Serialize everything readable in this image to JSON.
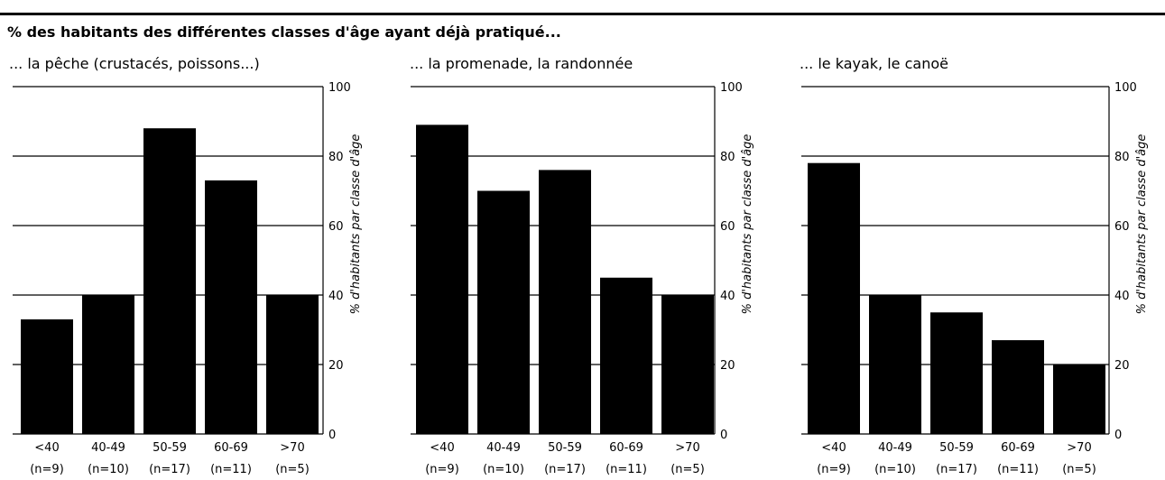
{
  "title": "% des habitants des différentes classes d'âge ayant déjà pratiqué...",
  "colors": {
    "bar": "#000000",
    "grid": "#000000",
    "background": "#ffffff"
  },
  "chart_data": [
    {
      "type": "bar",
      "title": "... la pêche (crustacés, poissons...)",
      "categories": [
        "<40",
        "40-49",
        "50-59",
        "60-69",
        ">70"
      ],
      "category_counts": [
        "(n=9)",
        "(n=10)",
        "(n=17)",
        "(n=11)",
        "(n=5)"
      ],
      "values": [
        33,
        40,
        88,
        73,
        40
      ],
      "ylabel": "% d'habitants par classe d'âge",
      "ylim": [
        0,
        100
      ],
      "yticks": [
        0,
        20,
        40,
        60,
        80,
        100
      ],
      "grid": true,
      "y_axis_side": "right"
    },
    {
      "type": "bar",
      "title": "... la promenade, la randonnée",
      "categories": [
        "<40",
        "40-49",
        "50-59",
        "60-69",
        ">70"
      ],
      "category_counts": [
        "(n=9)",
        "(n=10)",
        "(n=17)",
        "(n=11)",
        "(n=5)"
      ],
      "values": [
        89,
        70,
        76,
        45,
        40
      ],
      "ylabel": "% d'habitants par classe d'âge",
      "ylim": [
        0,
        100
      ],
      "yticks": [
        0,
        20,
        40,
        60,
        80,
        100
      ],
      "grid": true,
      "y_axis_side": "right"
    },
    {
      "type": "bar",
      "title": "... le kayak, le canoë",
      "categories": [
        "<40",
        "40-49",
        "50-59",
        "60-69",
        ">70"
      ],
      "category_counts": [
        "(n=9)",
        "(n=10)",
        "(n=17)",
        "(n=11)",
        "(n=5)"
      ],
      "values": [
        78,
        40,
        35,
        27,
        20
      ],
      "ylabel": "% d'habitants par classe d'âge",
      "ylim": [
        0,
        100
      ],
      "yticks": [
        0,
        20,
        40,
        60,
        80,
        100
      ],
      "grid": true,
      "y_axis_side": "right"
    }
  ]
}
